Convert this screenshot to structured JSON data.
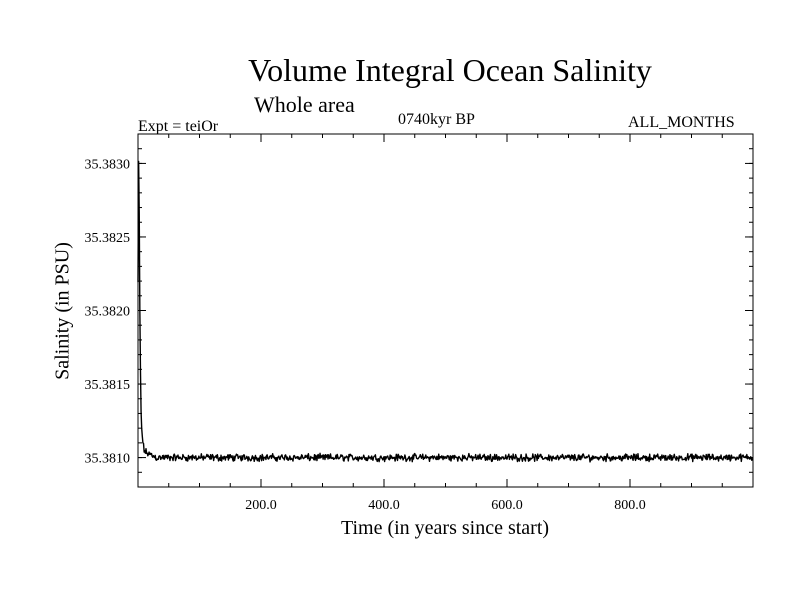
{
  "chart_data": {
    "type": "line",
    "title": "Volume Integral Ocean Salinity",
    "subtitle": "Whole area",
    "experiment": "Expt = teiOr",
    "period": "0740kyr BP",
    "months": "ALL_MONTHS",
    "xlabel": "Time (in years since start)",
    "ylabel": "Salinity (in PSU)",
    "xlim": [
      0,
      1000
    ],
    "ylim": [
      35.3808,
      35.3832
    ],
    "xticks": [
      200,
      400,
      600,
      800
    ],
    "xtick_labels": [
      "200.0",
      "400.0",
      "600.0",
      "800.0"
    ],
    "yticks": [
      35.381,
      35.3815,
      35.382,
      35.3825,
      35.383
    ],
    "ytick_labels": [
      "35.3810",
      "35.3815",
      "35.3820",
      "35.3825",
      "35.3830"
    ],
    "grid": false,
    "series": [
      {
        "name": "Volume integral salinity",
        "x": [
          0,
          1,
          2,
          3,
          4,
          5,
          6,
          8,
          10,
          12,
          15,
          20,
          30,
          50,
          75,
          100,
          150,
          200,
          250,
          300,
          350,
          400,
          450,
          500,
          550,
          600,
          650,
          700,
          750,
          800,
          850,
          900,
          950,
          1000
        ],
        "y": [
          35.3822,
          35.3829,
          35.3826,
          35.382,
          35.3815,
          35.3813,
          35.3812,
          35.3811,
          35.38105,
          35.38104,
          35.38103,
          35.38102,
          35.381,
          35.381,
          35.381,
          35.381,
          35.381,
          35.381,
          35.381,
          35.381,
          35.381,
          35.381,
          35.381,
          35.381,
          35.381,
          35.381,
          35.381,
          35.381,
          35.381,
          35.381,
          35.381,
          35.381,
          35.381,
          35.381
        ],
        "noise_amplitude": 3e-05
      }
    ]
  }
}
